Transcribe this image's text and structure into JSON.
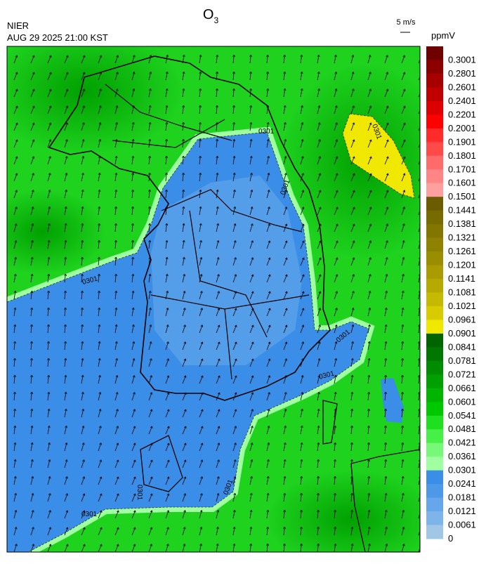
{
  "header": {
    "title": "O",
    "title_subscript": "3",
    "agency": "NIER",
    "timestamp": "AUG 29 2025 21:00 KST"
  },
  "wind_key": {
    "label": "5 m/s"
  },
  "colorbar": {
    "unit": "ppmV",
    "labels": [
      "0.3001",
      "0.2801",
      "0.2601",
      "0.2401",
      "0.2201",
      "0.2001",
      "0.1901",
      "0.1801",
      "0.1701",
      "0.1601",
      "0.1501",
      "0.1441",
      "0.1381",
      "0.1321",
      "0.1261",
      "0.1201",
      "0.1141",
      "0.1081",
      "0.1021",
      "0.0961",
      "0.0901",
      "0.0841",
      "0.0781",
      "0.0721",
      "0.0661",
      "0.0601",
      "0.0541",
      "0.0481",
      "0.0421",
      "0.0361",
      "0.0301",
      "0.0241",
      "0.0181",
      "0.0121",
      "0.0061",
      "0"
    ],
    "colors": [
      "#6e0000",
      "#8c0000",
      "#a60000",
      "#c00000",
      "#dc0000",
      "#ff0000",
      "#ff2a2a",
      "#ff4a4a",
      "#ff6a6a",
      "#ff8686",
      "#ffa0a0",
      "#6c5c00",
      "#766a00",
      "#827600",
      "#8e8200",
      "#9a8e00",
      "#a89c00",
      "#b6aa00",
      "#c6ba00",
      "#d8cc00",
      "#f0e800",
      "#006400",
      "#007800",
      "#008c00",
      "#00a000",
      "#00b400",
      "#00c800",
      "#1ee01e",
      "#46f046",
      "#78f878",
      "#a0ffa0",
      "#3a8ee8",
      "#4e98e8",
      "#66a6ea",
      "#7fb4ea",
      "#a0c8e6"
    ]
  },
  "contour_labels": [
    "0301",
    "0301",
    "0301",
    "0301",
    "0301",
    "0301",
    "0301",
    "0301",
    "0301"
  ]
}
